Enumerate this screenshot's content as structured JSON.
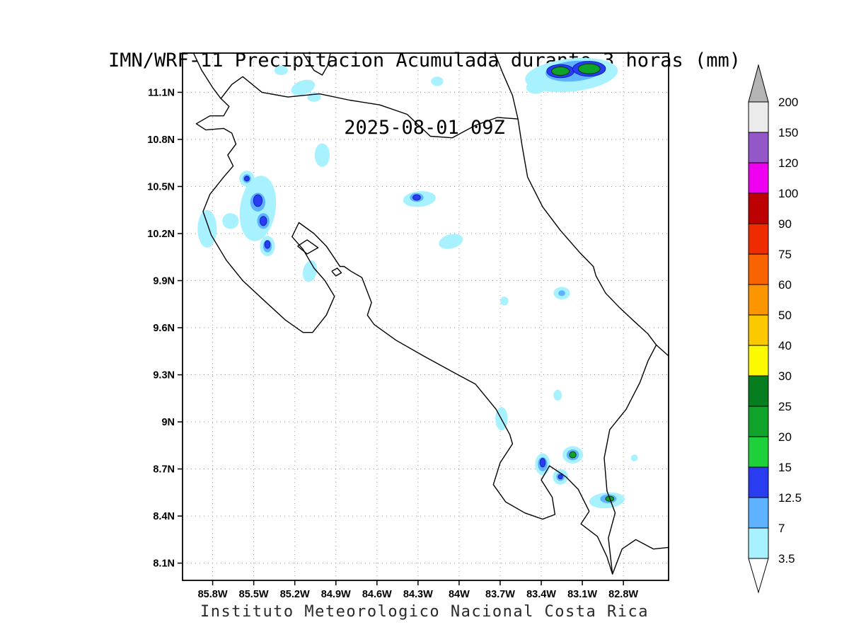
{
  "title": {
    "line1": "IMN/WRF-11 Precipitacion Acumulada durante 3 horas (mm)",
    "line2": "2025-08-01 09Z"
  },
  "footer": "Instituto Meteorologico Nacional Costa Rica",
  "chart_data": {
    "type": "heatmap",
    "title": "IMN/WRF-11 Precipitacion Acumulada durante 3 horas (mm)",
    "subtitle": "2025-08-01 09Z",
    "units": "mm",
    "xlabel": "",
    "ylabel": "",
    "grid": "dotted",
    "lon_range": [
      86.02,
      82.47
    ],
    "lat_range": [
      7.99,
      11.35
    ],
    "x_ticks": [
      "85.8W",
      "85.5W",
      "85.2W",
      "84.9W",
      "84.6W",
      "84.3W",
      "84W",
      "83.7W",
      "83.4W",
      "83.1W",
      "82.8W"
    ],
    "x_tick_values": [
      85.8,
      85.5,
      85.2,
      84.9,
      84.6,
      84.3,
      84.0,
      83.7,
      83.4,
      83.1,
      82.8
    ],
    "y_ticks": [
      "11.1N",
      "10.8N",
      "10.5N",
      "10.2N",
      "9.9N",
      "9.6N",
      "9.3N",
      "9N",
      "8.7N",
      "8.4N",
      "8.1N"
    ],
    "y_tick_values": [
      11.1,
      10.8,
      10.5,
      10.2,
      9.9,
      9.6,
      9.3,
      9.0,
      8.7,
      8.4,
      8.1
    ],
    "colorbar": {
      "levels": [
        3.5,
        7,
        12.5,
        15,
        20,
        25,
        30,
        40,
        50,
        60,
        75,
        90,
        100,
        120,
        150,
        200
      ],
      "level_labels": [
        "3.5",
        "7",
        "12.5",
        "15",
        "20",
        "25",
        "30",
        "40",
        "50",
        "60",
        "75",
        "90",
        "100",
        "120",
        "150",
        "200"
      ],
      "colors": [
        "#a8f2ff",
        "#5fb2ff",
        "#2a3cf0",
        "#1ed13b",
        "#0fa32a",
        "#067d1e",
        "#fcfa00",
        "#fcc800",
        "#fc9600",
        "#fa6400",
        "#ef2c00",
        "#bd0000",
        "#f000f0",
        "#9457c8",
        "#ebebeb"
      ],
      "under_color": "#ffffff",
      "over_color": "#b4b4b4"
    },
    "precip_blobs": [
      {
        "lon": 83.18,
        "lat": 11.21,
        "rx": 0.34,
        "ry": 0.105,
        "rot": -6,
        "level": 3.5
      },
      {
        "lon": 83.44,
        "lat": 11.13,
        "rx": 0.07,
        "ry": 0.04,
        "rot": 0,
        "level": 3.5
      },
      {
        "lon": 83.16,
        "lat": 11.235,
        "rx": 0.21,
        "ry": 0.065,
        "rot": -5,
        "level": 7
      },
      {
        "lon": 83.26,
        "lat": 11.235,
        "rx": 0.1,
        "ry": 0.042,
        "rot": 0,
        "level": 12.5
      },
      {
        "lon": 83.05,
        "lat": 11.25,
        "rx": 0.12,
        "ry": 0.048,
        "rot": 0,
        "level": 12.5
      },
      {
        "lon": 83.26,
        "lat": 11.235,
        "rx": 0.065,
        "ry": 0.027,
        "rot": 0,
        "level": 20
      },
      {
        "lon": 83.05,
        "lat": 11.25,
        "rx": 0.08,
        "ry": 0.032,
        "rot": 0,
        "level": 20
      },
      {
        "lon": 85.3,
        "lat": 11.24,
        "rx": 0.05,
        "ry": 0.03,
        "rot": 0,
        "level": 3.5
      },
      {
        "lon": 85.14,
        "lat": 11.13,
        "rx": 0.09,
        "ry": 0.045,
        "rot": -20,
        "level": 3.5
      },
      {
        "lon": 85.06,
        "lat": 11.07,
        "rx": 0.05,
        "ry": 0.03,
        "rot": 0,
        "level": 3.5
      },
      {
        "lon": 84.16,
        "lat": 11.17,
        "rx": 0.045,
        "ry": 0.03,
        "rot": 0,
        "level": 3.5
      },
      {
        "lon": 85.0,
        "lat": 10.7,
        "rx": 0.055,
        "ry": 0.075,
        "rot": 0,
        "level": 3.5
      },
      {
        "lon": 85.47,
        "lat": 10.36,
        "rx": 0.13,
        "ry": 0.21,
        "rot": 8,
        "level": 3.5
      },
      {
        "lon": 85.84,
        "lat": 10.23,
        "rx": 0.07,
        "ry": 0.12,
        "rot": 0,
        "level": 3.5
      },
      {
        "lon": 85.67,
        "lat": 10.28,
        "rx": 0.06,
        "ry": 0.05,
        "rot": 0,
        "level": 3.5
      },
      {
        "lon": 85.55,
        "lat": 10.55,
        "rx": 0.055,
        "ry": 0.05,
        "rot": 0,
        "level": 3.5
      },
      {
        "lon": 85.55,
        "lat": 10.55,
        "rx": 0.03,
        "ry": 0.028,
        "rot": 0,
        "level": 7
      },
      {
        "lon": 85.55,
        "lat": 10.55,
        "rx": 0.018,
        "ry": 0.016,
        "rot": 0,
        "level": 12.5
      },
      {
        "lon": 85.47,
        "lat": 10.4,
        "rx": 0.055,
        "ry": 0.06,
        "rot": 0,
        "level": 7
      },
      {
        "lon": 85.47,
        "lat": 10.41,
        "rx": 0.032,
        "ry": 0.038,
        "rot": 0,
        "level": 12.5
      },
      {
        "lon": 85.43,
        "lat": 10.28,
        "rx": 0.045,
        "ry": 0.05,
        "rot": 0,
        "level": 7
      },
      {
        "lon": 85.43,
        "lat": 10.28,
        "rx": 0.025,
        "ry": 0.03,
        "rot": 0,
        "level": 12.5
      },
      {
        "lon": 85.4,
        "lat": 10.12,
        "rx": 0.055,
        "ry": 0.065,
        "rot": 0,
        "level": 3.5
      },
      {
        "lon": 85.4,
        "lat": 10.12,
        "rx": 0.032,
        "ry": 0.04,
        "rot": 0,
        "level": 7
      },
      {
        "lon": 85.4,
        "lat": 10.13,
        "rx": 0.02,
        "ry": 0.025,
        "rot": 0,
        "level": 12.5
      },
      {
        "lon": 85.09,
        "lat": 9.96,
        "rx": 0.05,
        "ry": 0.07,
        "rot": 12,
        "level": 3.5
      },
      {
        "lon": 84.29,
        "lat": 10.42,
        "rx": 0.12,
        "ry": 0.05,
        "rot": -5,
        "level": 3.5
      },
      {
        "lon": 84.31,
        "lat": 10.43,
        "rx": 0.05,
        "ry": 0.028,
        "rot": 0,
        "level": 7
      },
      {
        "lon": 84.31,
        "lat": 10.43,
        "rx": 0.028,
        "ry": 0.018,
        "rot": 0,
        "level": 12.5
      },
      {
        "lon": 84.06,
        "lat": 10.15,
        "rx": 0.09,
        "ry": 0.045,
        "rot": -15,
        "level": 3.5
      },
      {
        "lon": 83.25,
        "lat": 9.82,
        "rx": 0.06,
        "ry": 0.04,
        "rot": 0,
        "level": 3.5
      },
      {
        "lon": 83.25,
        "lat": 9.82,
        "rx": 0.025,
        "ry": 0.018,
        "rot": 0,
        "level": 7
      },
      {
        "lon": 83.67,
        "lat": 9.77,
        "rx": 0.03,
        "ry": 0.028,
        "rot": 0,
        "level": 3.5
      },
      {
        "lon": 83.69,
        "lat": 9.02,
        "rx": 0.045,
        "ry": 0.075,
        "rot": 0,
        "level": 3.5
      },
      {
        "lon": 83.28,
        "lat": 9.17,
        "rx": 0.03,
        "ry": 0.035,
        "rot": 0,
        "level": 3.5
      },
      {
        "lon": 83.39,
        "lat": 8.73,
        "rx": 0.055,
        "ry": 0.07,
        "rot": 0,
        "level": 3.5
      },
      {
        "lon": 83.39,
        "lat": 8.73,
        "rx": 0.035,
        "ry": 0.045,
        "rot": 0,
        "level": 7
      },
      {
        "lon": 83.39,
        "lat": 8.74,
        "rx": 0.02,
        "ry": 0.028,
        "rot": 0,
        "level": 12.5
      },
      {
        "lon": 83.17,
        "lat": 8.79,
        "rx": 0.075,
        "ry": 0.055,
        "rot": 0,
        "level": 3.5
      },
      {
        "lon": 83.17,
        "lat": 8.79,
        "rx": 0.045,
        "ry": 0.035,
        "rot": 0,
        "level": 7
      },
      {
        "lon": 83.17,
        "lat": 8.79,
        "rx": 0.024,
        "ry": 0.02,
        "rot": 0,
        "level": 20
      },
      {
        "lon": 83.26,
        "lat": 8.65,
        "rx": 0.055,
        "ry": 0.05,
        "rot": 0,
        "level": 3.5
      },
      {
        "lon": 83.26,
        "lat": 8.65,
        "rx": 0.03,
        "ry": 0.026,
        "rot": 0,
        "level": 7
      },
      {
        "lon": 83.26,
        "lat": 8.65,
        "rx": 0.016,
        "ry": 0.014,
        "rot": 0,
        "level": 12.5
      },
      {
        "lon": 82.92,
        "lat": 8.5,
        "rx": 0.13,
        "ry": 0.05,
        "rot": -5,
        "level": 3.5
      },
      {
        "lon": 82.91,
        "lat": 8.51,
        "rx": 0.06,
        "ry": 0.028,
        "rot": 0,
        "level": 7
      },
      {
        "lon": 82.9,
        "lat": 8.51,
        "rx": 0.03,
        "ry": 0.016,
        "rot": 0,
        "level": 20
      },
      {
        "lon": 82.72,
        "lat": 8.77,
        "rx": 0.025,
        "ry": 0.022,
        "rot": 0,
        "level": 3.5
      }
    ],
    "coastlines": {
      "costa_rica": [
        [
          85.74,
          11.06
        ],
        [
          85.68,
          11.01
        ],
        [
          85.72,
          10.95
        ],
        [
          85.82,
          10.95
        ],
        [
          85.92,
          10.9
        ],
        [
          85.85,
          10.86
        ],
        [
          85.72,
          10.87
        ],
        [
          85.66,
          10.84
        ],
        [
          85.63,
          10.77
        ],
        [
          85.69,
          10.7
        ],
        [
          85.65,
          10.63
        ],
        [
          85.72,
          10.56
        ],
        [
          85.82,
          10.45
        ],
        [
          85.87,
          10.34
        ],
        [
          85.81,
          10.19
        ],
        [
          85.7,
          10.03
        ],
        [
          85.58,
          9.9
        ],
        [
          85.42,
          9.77
        ],
        [
          85.27,
          9.65
        ],
        [
          85.14,
          9.57
        ],
        [
          85.07,
          9.57
        ],
        [
          84.97,
          9.68
        ],
        [
          84.91,
          9.8
        ],
        [
          84.98,
          9.9
        ],
        [
          85.06,
          9.98
        ],
        [
          85.14,
          10.1
        ],
        [
          85.22,
          10.18
        ],
        [
          85.17,
          10.27
        ],
        [
          85.06,
          10.2
        ],
        [
          84.97,
          10.12
        ],
        [
          84.9,
          10.03
        ],
        [
          84.87,
          9.99
        ],
        [
          84.84,
          9.99
        ],
        [
          84.79,
          9.96
        ],
        [
          84.71,
          9.92
        ],
        [
          84.64,
          9.76
        ],
        [
          84.67,
          9.68
        ],
        [
          84.62,
          9.62
        ],
        [
          84.46,
          9.52
        ],
        [
          84.26,
          9.42
        ],
        [
          84.05,
          9.32
        ],
        [
          83.88,
          9.24
        ],
        [
          83.73,
          9.08
        ],
        [
          83.63,
          8.92
        ],
        [
          83.61,
          8.86
        ],
        [
          83.7,
          8.74
        ],
        [
          83.75,
          8.6
        ],
        [
          83.66,
          8.49
        ],
        [
          83.52,
          8.42
        ],
        [
          83.39,
          8.38
        ],
        [
          83.3,
          8.41
        ],
        [
          83.32,
          8.52
        ],
        [
          83.4,
          8.63
        ],
        [
          83.34,
          8.72
        ],
        [
          83.22,
          8.65
        ],
        [
          83.13,
          8.57
        ],
        [
          83.05,
          8.43
        ],
        [
          83.11,
          8.35
        ],
        [
          82.99,
          8.27
        ],
        [
          82.92,
          8.14
        ],
        [
          82.88,
          8.03
        ],
        [
          82.91,
          8.26
        ],
        [
          82.86,
          8.42
        ],
        [
          82.92,
          8.56
        ],
        [
          82.94,
          8.77
        ],
        [
          82.9,
          8.95
        ],
        [
          82.78,
          9.08
        ],
        [
          82.68,
          9.25
        ],
        [
          82.62,
          9.39
        ],
        [
          82.56,
          9.49
        ],
        [
          82.62,
          9.56
        ],
        [
          82.72,
          9.64
        ],
        [
          82.83,
          9.73
        ],
        [
          82.93,
          9.82
        ],
        [
          83.0,
          9.93
        ],
        [
          83.02,
          9.99
        ],
        [
          83.12,
          10.08
        ],
        [
          83.26,
          10.22
        ],
        [
          83.39,
          10.37
        ],
        [
          83.5,
          10.56
        ],
        [
          83.54,
          10.76
        ],
        [
          83.57,
          10.93
        ],
        [
          83.72,
          10.94
        ],
        [
          83.88,
          10.89
        ],
        [
          84.05,
          10.81
        ],
        [
          84.21,
          10.82
        ],
        [
          84.38,
          10.96
        ],
        [
          84.58,
          11.02
        ],
        [
          84.8,
          11.05
        ],
        [
          85.02,
          11.09
        ],
        [
          85.25,
          11.07
        ],
        [
          85.44,
          11.1
        ],
        [
          85.58,
          11.2
        ],
        [
          85.66,
          11.15
        ],
        [
          85.74,
          11.06
        ]
      ],
      "nicaragua_pacific_coast": [
        [
          85.94,
          11.35
        ],
        [
          85.88,
          11.24
        ],
        [
          85.8,
          11.13
        ],
        [
          85.74,
          11.06
        ]
      ],
      "nicaragua_caribbean_coast": [
        [
          83.57,
          10.93
        ],
        [
          83.61,
          11.08
        ],
        [
          83.68,
          11.22
        ],
        [
          83.74,
          11.35
        ]
      ],
      "lake_nicaragua": [
        [
          85.14,
          11.35
        ],
        [
          85.06,
          11.24
        ],
        [
          85.0,
          11.21
        ],
        [
          84.96,
          11.27
        ],
        [
          84.94,
          11.35
        ]
      ],
      "panama_pacific_coast": [
        [
          82.88,
          8.03
        ],
        [
          82.81,
          8.19
        ],
        [
          82.71,
          8.25
        ],
        [
          82.58,
          8.19
        ],
        [
          82.47,
          8.2
        ]
      ],
      "panama_caribbean_coast": [
        [
          82.56,
          9.49
        ],
        [
          82.47,
          9.42
        ]
      ],
      "isla_chira": [
        [
          85.18,
          10.12
        ],
        [
          85.11,
          10.16
        ],
        [
          85.03,
          10.11
        ],
        [
          85.11,
          10.07
        ],
        [
          85.18,
          10.12
        ]
      ],
      "isla_san_lucas": [
        [
          84.93,
          9.96
        ],
        [
          84.89,
          9.98
        ],
        [
          84.86,
          9.95
        ],
        [
          84.9,
          9.93
        ],
        [
          84.93,
          9.96
        ]
      ]
    }
  }
}
